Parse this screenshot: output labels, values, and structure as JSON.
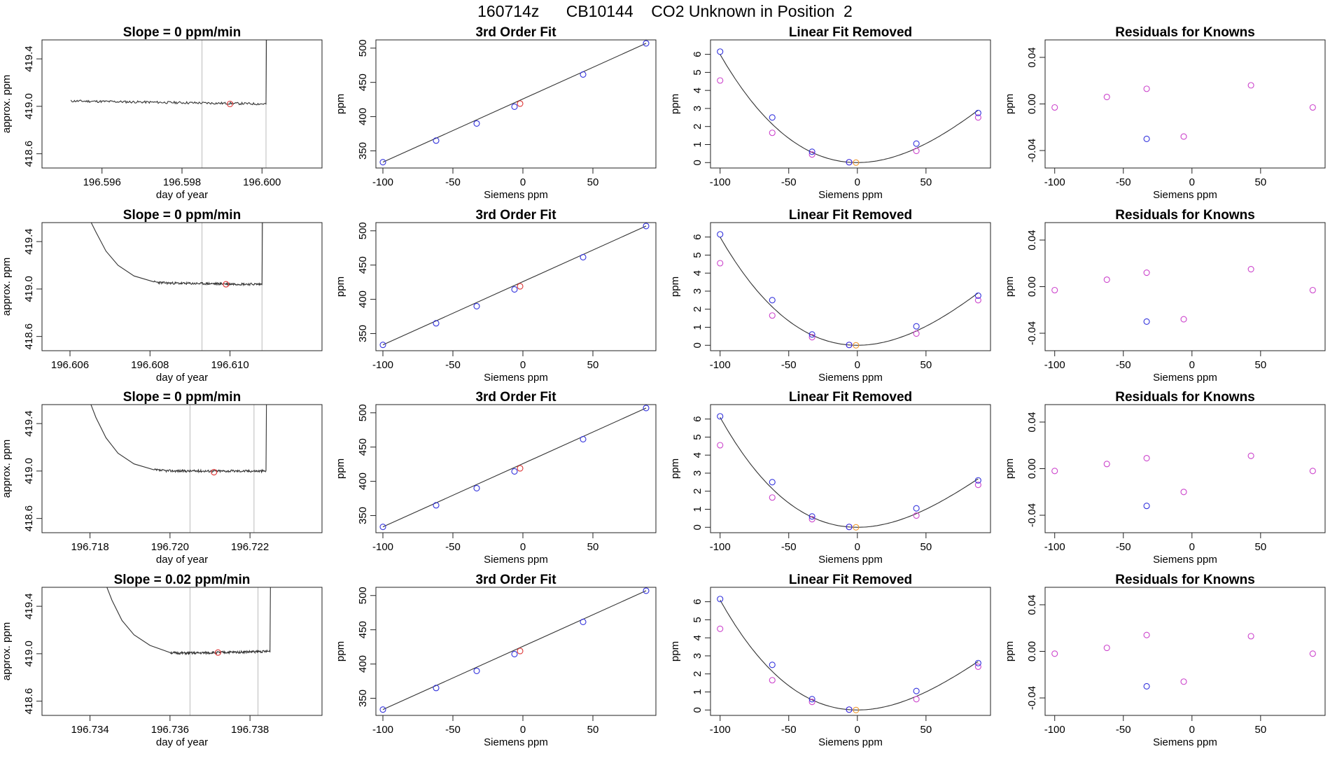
{
  "header": {
    "title": "160714z      CB10144    CO2 Unknown in Position  2"
  },
  "colors": {
    "known": "#3333dd",
    "reference": "#cc44cc",
    "unknown": "#dd3333",
    "unknown_fit": "#ee9933",
    "line": "#333333",
    "vline": "#bbbbbb"
  },
  "chart_data": [
    {
      "row": 1,
      "type": "line",
      "title": "Slope =  0  ppm/min",
      "xlabel": "day of year",
      "ylabel": "approx. ppm",
      "xlim": [
        196.5945,
        196.6015
      ],
      "ylim": [
        418.48,
        419.56
      ],
      "xticks": [
        196.596,
        196.598,
        196.6
      ],
      "xtick_labels": [
        "196.596",
        "196.598",
        "196.600"
      ],
      "yticks": [
        418.6,
        419.0,
        419.4
      ],
      "ytick_labels": [
        "418.6",
        "419.0",
        "419.4"
      ],
      "trace": {
        "start": 196.5952,
        "end": 196.6002,
        "jump_at": 196.6001,
        "head": [],
        "level": 419.045,
        "level_end": 419.02,
        "noise": 0.01,
        "seed": 11
      },
      "vlines": [
        196.5985,
        196.6001
      ],
      "marker": {
        "x": 196.5992,
        "y": 419.02
      }
    },
    {
      "row": 1,
      "type": "scatter",
      "title": "3rd Order Fit",
      "xlabel": "Siemens ppm",
      "ylabel": "ppm",
      "xlim": [
        -105,
        95
      ],
      "ylim": [
        325,
        512
      ],
      "xticks": [
        -100,
        -50,
        0,
        50
      ],
      "xtick_labels": [
        "-100",
        "-50",
        "0",
        "50"
      ],
      "yticks": [
        350,
        400,
        450,
        500
      ],
      "ytick_labels": [
        "350",
        "400",
        "450",
        "500"
      ],
      "line": [
        [
          -100,
          333.5
        ],
        [
          88,
          507
        ]
      ],
      "knowns": [
        [
          -100,
          333.5
        ],
        [
          -62,
          365
        ],
        [
          -33,
          390
        ],
        [
          -6,
          414.5
        ],
        [
          43,
          461.5
        ],
        [
          88,
          507
        ]
      ],
      "unknown": [
        -2,
        419
      ]
    },
    {
      "row": 1,
      "type": "scatter",
      "title": "Linear Fit Removed",
      "xlabel": "Siemens ppm",
      "ylabel": "ppm",
      "xlim": [
        -107,
        97
      ],
      "ylim": [
        -0.3,
        6.8
      ],
      "xticks": [
        -100,
        -50,
        0,
        50
      ],
      "xtick_labels": [
        "-100",
        "-50",
        "0",
        "50"
      ],
      "yticks": [
        0,
        1,
        2,
        3,
        4,
        5,
        6
      ],
      "ytick_labels": [
        "0",
        "1",
        "2",
        "3",
        "4",
        "5",
        "6"
      ],
      "curve": {
        "a": 0.00048,
        "b": 5e-05,
        "c": -1.2e-06
      },
      "knowns": [
        [
          -100,
          6.15
        ],
        [
          -62,
          2.5
        ],
        [
          -33,
          0.6
        ],
        [
          -6,
          0.02
        ],
        [
          43,
          1.05
        ],
        [
          88,
          2.75
        ]
      ],
      "refs": [
        [
          -100,
          4.55
        ],
        [
          -62,
          1.65
        ],
        [
          -33,
          0.45
        ],
        [
          -6,
          0.02
        ],
        [
          43,
          0.65
        ],
        [
          88,
          2.5
        ]
      ],
      "unknown": [
        -1,
        0.0
      ]
    },
    {
      "row": 1,
      "type": "scatter",
      "title": "Residuals for Knowns",
      "xlabel": "Siemens ppm",
      "ylabel": "ppm",
      "xlim": [
        -107,
        97
      ],
      "ylim": [
        -0.055,
        0.055
      ],
      "xticks": [
        -100,
        -50,
        0,
        50
      ],
      "xtick_labels": [
        "-100",
        "-50",
        "0",
        "50"
      ],
      "yticks": [
        -0.04,
        0.0,
        0.04
      ],
      "ytick_labels": [
        "-0.04",
        "0.00",
        "0.04"
      ],
      "knowns": [
        [
          -33,
          -0.03
        ]
      ],
      "refs": [
        [
          -100,
          -0.003
        ],
        [
          -62,
          0.006
        ],
        [
          -33,
          0.013
        ],
        [
          -6,
          -0.028
        ],
        [
          43,
          0.016
        ],
        [
          88,
          -0.003
        ]
      ]
    },
    {
      "row": 2,
      "type": "line",
      "title": "Slope =  0  ppm/min",
      "xlabel": "day of year",
      "ylabel": "approx. ppm",
      "xlim": [
        196.6053,
        196.6123
      ],
      "ylim": [
        418.48,
        419.56
      ],
      "xticks": [
        196.606,
        196.608,
        196.61
      ],
      "xtick_labels": [
        "196.606",
        "196.608",
        "196.610"
      ],
      "yticks": [
        418.6,
        419.0,
        419.4
      ],
      "ytick_labels": [
        "418.6",
        "419.0",
        "419.4"
      ],
      "trace": {
        "start": 196.6065,
        "end": 196.6109,
        "jump_at": 196.6108,
        "head": [
          [
            196.6065,
            419.58
          ],
          [
            196.60665,
            419.48
          ],
          [
            196.6069,
            419.32
          ],
          [
            196.6072,
            419.2
          ],
          [
            196.6076,
            419.11
          ],
          [
            196.6081,
            419.06
          ]
        ],
        "level": 419.05,
        "level_end": 419.04,
        "noise": 0.01,
        "seed": 23
      },
      "vlines": [
        196.6093,
        196.6108
      ],
      "marker": {
        "x": 196.6099,
        "y": 419.04
      }
    },
    {
      "row": 2,
      "type": "scatter",
      "title": "3rd Order Fit",
      "xlabel": "Siemens ppm",
      "ylabel": "ppm",
      "xlim": [
        -105,
        95
      ],
      "ylim": [
        325,
        512
      ],
      "xticks": [
        -100,
        -50,
        0,
        50
      ],
      "xtick_labels": [
        "-100",
        "-50",
        "0",
        "50"
      ],
      "yticks": [
        350,
        400,
        450,
        500
      ],
      "ytick_labels": [
        "350",
        "400",
        "450",
        "500"
      ],
      "line": [
        [
          -100,
          333.5
        ],
        [
          88,
          507
        ]
      ],
      "knowns": [
        [
          -100,
          333.5
        ],
        [
          -62,
          365
        ],
        [
          -33,
          390
        ],
        [
          -6,
          414.5
        ],
        [
          43,
          461.5
        ],
        [
          88,
          507
        ]
      ],
      "unknown": [
        -2,
        419
      ]
    },
    {
      "row": 2,
      "type": "scatter",
      "title": "Linear Fit Removed",
      "xlabel": "Siemens ppm",
      "ylabel": "ppm",
      "xlim": [
        -107,
        97
      ],
      "ylim": [
        -0.3,
        6.8
      ],
      "xticks": [
        -100,
        -50,
        0,
        50
      ],
      "xtick_labels": [
        "-100",
        "-50",
        "0",
        "50"
      ],
      "yticks": [
        0,
        1,
        2,
        3,
        4,
        5,
        6
      ],
      "ytick_labels": [
        "0",
        "1",
        "2",
        "3",
        "4",
        "5",
        "6"
      ],
      "curve": {
        "a": 0.00048,
        "b": 5e-05,
        "c": -1.2e-06
      },
      "knowns": [
        [
          -100,
          6.15
        ],
        [
          -62,
          2.5
        ],
        [
          -33,
          0.6
        ],
        [
          -6,
          0.02
        ],
        [
          43,
          1.05
        ],
        [
          88,
          2.75
        ]
      ],
      "refs": [
        [
          -100,
          4.55
        ],
        [
          -62,
          1.65
        ],
        [
          -33,
          0.45
        ],
        [
          -6,
          0.02
        ],
        [
          43,
          0.65
        ],
        [
          88,
          2.5
        ]
      ],
      "unknown": [
        -1,
        0.0
      ]
    },
    {
      "row": 2,
      "type": "scatter",
      "title": "Residuals for Knowns",
      "xlabel": "Siemens ppm",
      "ylabel": "ppm",
      "xlim": [
        -107,
        97
      ],
      "ylim": [
        -0.055,
        0.055
      ],
      "xticks": [
        -100,
        -50,
        0,
        50
      ],
      "xtick_labels": [
        "-100",
        "-50",
        "0",
        "50"
      ],
      "yticks": [
        -0.04,
        0.0,
        0.04
      ],
      "ytick_labels": [
        "-0.04",
        "0.00",
        "0.04"
      ],
      "knowns": [
        [
          -33,
          -0.03
        ]
      ],
      "refs": [
        [
          -100,
          -0.003
        ],
        [
          -62,
          0.006
        ],
        [
          -33,
          0.012
        ],
        [
          -6,
          -0.028
        ],
        [
          43,
          0.015
        ],
        [
          88,
          -0.003
        ]
      ]
    },
    {
      "row": 3,
      "type": "line",
      "title": "Slope =  0  ppm/min",
      "xlabel": "day of year",
      "ylabel": "approx. ppm",
      "xlim": [
        196.7168,
        196.7238
      ],
      "ylim": [
        418.48,
        419.56
      ],
      "xticks": [
        196.718,
        196.72,
        196.722
      ],
      "xtick_labels": [
        "196.718",
        "196.720",
        "196.722"
      ],
      "yticks": [
        418.6,
        419.0,
        419.4
      ],
      "ytick_labels": [
        "418.6",
        "419.0",
        "419.4"
      ],
      "trace": {
        "start": 196.718,
        "end": 196.7225,
        "jump_at": 196.7224,
        "head": [
          [
            196.718,
            419.58
          ],
          [
            196.71815,
            419.45
          ],
          [
            196.7184,
            419.28
          ],
          [
            196.7187,
            419.15
          ],
          [
            196.7191,
            419.06
          ],
          [
            196.7196,
            419.01
          ]
        ],
        "level": 419.0,
        "level_end": 419.0,
        "noise": 0.01,
        "seed": 37
      },
      "vlines": [
        196.7205,
        196.7221
      ],
      "marker": {
        "x": 196.7211,
        "y": 418.99
      }
    },
    {
      "row": 3,
      "type": "scatter",
      "title": "3rd Order Fit",
      "xlabel": "Siemens ppm",
      "ylabel": "ppm",
      "xlim": [
        -105,
        95
      ],
      "ylim": [
        325,
        512
      ],
      "xticks": [
        -100,
        -50,
        0,
        50
      ],
      "xtick_labels": [
        "-100",
        "-50",
        "0",
        "50"
      ],
      "yticks": [
        350,
        400,
        450,
        500
      ],
      "ytick_labels": [
        "350",
        "400",
        "450",
        "500"
      ],
      "line": [
        [
          -100,
          333.5
        ],
        [
          88,
          507
        ]
      ],
      "knowns": [
        [
          -100,
          333.5
        ],
        [
          -62,
          365
        ],
        [
          -33,
          390
        ],
        [
          -6,
          414.5
        ],
        [
          43,
          461.5
        ],
        [
          88,
          507
        ]
      ],
      "unknown": [
        -2,
        419
      ]
    },
    {
      "row": 3,
      "type": "scatter",
      "title": "Linear Fit Removed",
      "xlabel": "Siemens ppm",
      "ylabel": "ppm",
      "xlim": [
        -107,
        97
      ],
      "ylim": [
        -0.3,
        6.8
      ],
      "xticks": [
        -100,
        -50,
        0,
        50
      ],
      "xtick_labels": [
        "-100",
        "-50",
        "0",
        "50"
      ],
      "yticks": [
        0,
        1,
        2,
        3,
        4,
        5,
        6
      ],
      "ytick_labels": [
        "0",
        "1",
        "2",
        "3",
        "4",
        "5",
        "6"
      ],
      "curve": {
        "a": 0.00047,
        "b": 4e-05,
        "c": -1.4e-06
      },
      "knowns": [
        [
          -100,
          6.15
        ],
        [
          -62,
          2.5
        ],
        [
          -33,
          0.6
        ],
        [
          -6,
          0.02
        ],
        [
          43,
          1.05
        ],
        [
          88,
          2.6
        ]
      ],
      "refs": [
        [
          -100,
          4.55
        ],
        [
          -62,
          1.65
        ],
        [
          -33,
          0.45
        ],
        [
          -6,
          0.02
        ],
        [
          43,
          0.65
        ],
        [
          88,
          2.35
        ]
      ],
      "unknown": [
        -1,
        0.0
      ]
    },
    {
      "row": 3,
      "type": "scatter",
      "title": "Residuals for Knowns",
      "xlabel": "Siemens ppm",
      "ylabel": "ppm",
      "xlim": [
        -107,
        97
      ],
      "ylim": [
        -0.055,
        0.055
      ],
      "xticks": [
        -100,
        -50,
        0,
        50
      ],
      "xtick_labels": [
        "-100",
        "-50",
        "0",
        "50"
      ],
      "yticks": [
        -0.04,
        0.0,
        0.04
      ],
      "ytick_labels": [
        "-0.04",
        "0.00",
        "0.04"
      ],
      "knowns": [
        [
          -33,
          -0.032
        ]
      ],
      "refs": [
        [
          -100,
          -0.002
        ],
        [
          -62,
          0.004
        ],
        [
          -33,
          0.009
        ],
        [
          -6,
          -0.02
        ],
        [
          43,
          0.011
        ],
        [
          88,
          -0.002
        ]
      ]
    },
    {
      "row": 4,
      "type": "line",
      "title": "Slope =  0.02  ppm/min",
      "xlabel": "day of year",
      "ylabel": "approx. ppm",
      "xlim": [
        196.7328,
        196.7398
      ],
      "ylim": [
        418.48,
        419.56
      ],
      "xticks": [
        196.734,
        196.736,
        196.738
      ],
      "xtick_labels": [
        "196.734",
        "196.736",
        "196.738"
      ],
      "yticks": [
        418.6,
        419.0,
        419.4
      ],
      "ytick_labels": [
        "418.6",
        "419.0",
        "419.4"
      ],
      "trace": {
        "start": 196.7344,
        "end": 196.7386,
        "jump_at": 196.7385,
        "head": [
          [
            196.7344,
            419.58
          ],
          [
            196.73455,
            419.45
          ],
          [
            196.7348,
            419.28
          ],
          [
            196.7351,
            419.16
          ],
          [
            196.7355,
            419.07
          ],
          [
            196.736,
            419.01
          ]
        ],
        "level": 419.0,
        "level_end": 419.02,
        "noise": 0.01,
        "seed": 51
      },
      "vlines": [
        196.7365,
        196.7382
      ],
      "marker": {
        "x": 196.7372,
        "y": 419.01
      }
    },
    {
      "row": 4,
      "type": "scatter",
      "title": "3rd Order Fit",
      "xlabel": "Siemens ppm",
      "ylabel": "ppm",
      "xlim": [
        -105,
        95
      ],
      "ylim": [
        325,
        512
      ],
      "xticks": [
        -100,
        -50,
        0,
        50
      ],
      "xtick_labels": [
        "-100",
        "-50",
        "0",
        "50"
      ],
      "yticks": [
        350,
        400,
        450,
        500
      ],
      "ytick_labels": [
        "350",
        "400",
        "450",
        "500"
      ],
      "line": [
        [
          -100,
          333.5
        ],
        [
          88,
          507
        ]
      ],
      "knowns": [
        [
          -100,
          333.5
        ],
        [
          -62,
          365
        ],
        [
          -33,
          390
        ],
        [
          -6,
          414.5
        ],
        [
          43,
          461.5
        ],
        [
          88,
          507
        ]
      ],
      "unknown": [
        -2,
        419
      ]
    },
    {
      "row": 4,
      "type": "scatter",
      "title": "Linear Fit Removed",
      "xlabel": "Siemens ppm",
      "ylabel": "ppm",
      "xlim": [
        -107,
        97
      ],
      "ylim": [
        -0.3,
        6.8
      ],
      "xticks": [
        -100,
        -50,
        0,
        50
      ],
      "xtick_labels": [
        "-100",
        "-50",
        "0",
        "50"
      ],
      "yticks": [
        0,
        1,
        2,
        3,
        4,
        5,
        6
      ],
      "ytick_labels": [
        "0",
        "1",
        "2",
        "3",
        "4",
        "5",
        "6"
      ],
      "curve": {
        "a": 0.00047,
        "b": 4e-05,
        "c": -1.4e-06
      },
      "knowns": [
        [
          -100,
          6.15
        ],
        [
          -62,
          2.5
        ],
        [
          -33,
          0.6
        ],
        [
          -6,
          0.02
        ],
        [
          43,
          1.05
        ],
        [
          88,
          2.6
        ]
      ],
      "refs": [
        [
          -100,
          4.5
        ],
        [
          -62,
          1.65
        ],
        [
          -33,
          0.45
        ],
        [
          -6,
          0.02
        ],
        [
          43,
          0.6
        ],
        [
          88,
          2.4
        ]
      ],
      "unknown": [
        -1,
        0.0
      ]
    },
    {
      "row": 4,
      "type": "scatter",
      "title": "Residuals for Knowns",
      "xlabel": "Siemens ppm",
      "ylabel": "ppm",
      "xlim": [
        -107,
        97
      ],
      "ylim": [
        -0.055,
        0.055
      ],
      "xticks": [
        -100,
        -50,
        0,
        50
      ],
      "xtick_labels": [
        "-100",
        "-50",
        "0",
        "50"
      ],
      "yticks": [
        -0.04,
        0.0,
        0.04
      ],
      "ytick_labels": [
        "-0.04",
        "0.00",
        "0.04"
      ],
      "knowns": [
        [
          -33,
          -0.03
        ]
      ],
      "refs": [
        [
          -100,
          -0.002
        ],
        [
          -62,
          0.003
        ],
        [
          -33,
          0.014
        ],
        [
          -6,
          -0.026
        ],
        [
          43,
          0.013
        ],
        [
          88,
          -0.002
        ]
      ]
    }
  ]
}
